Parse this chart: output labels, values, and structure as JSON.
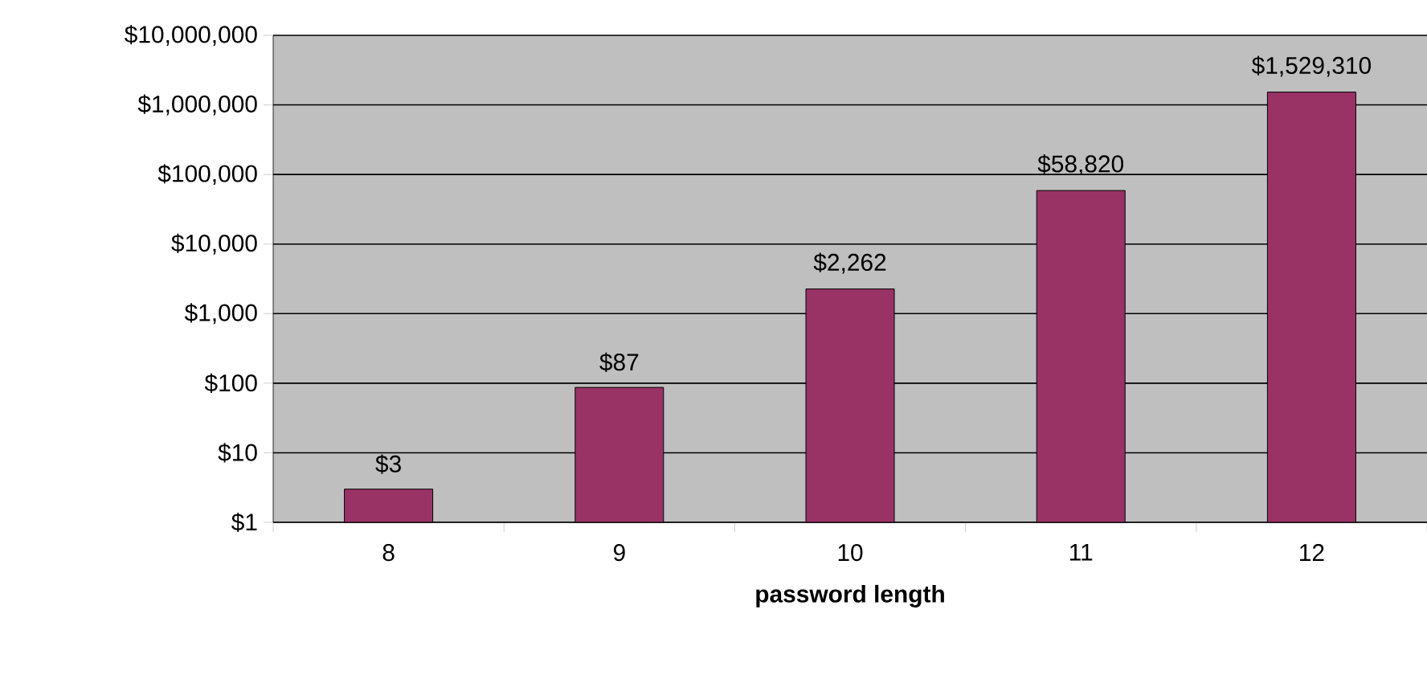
{
  "chart_data": {
    "type": "bar",
    "xlabel": "password length",
    "categories": [
      "8",
      "9",
      "10",
      "11",
      "12"
    ],
    "values": [
      3,
      87,
      2262,
      58820,
      1529310
    ],
    "value_labels": [
      "$3",
      "$87",
      "$2,262",
      "$58,820",
      "$1,529,310"
    ],
    "color": "#993366",
    "log": "y",
    "grid": "y",
    "ylim": [
      1,
      10000000
    ],
    "yticks": [
      {
        "value": 1,
        "label": "$1"
      },
      {
        "value": 10,
        "label": "$10"
      },
      {
        "value": 100,
        "label": "$100"
      },
      {
        "value": 1000,
        "label": "$1,000"
      },
      {
        "value": 10000,
        "label": "$10,000"
      },
      {
        "value": 100000,
        "label": "$100,000"
      },
      {
        "value": 1000000,
        "label": "$1,000,000"
      },
      {
        "value": 10000000,
        "label": "$10,000,000"
      }
    ]
  }
}
